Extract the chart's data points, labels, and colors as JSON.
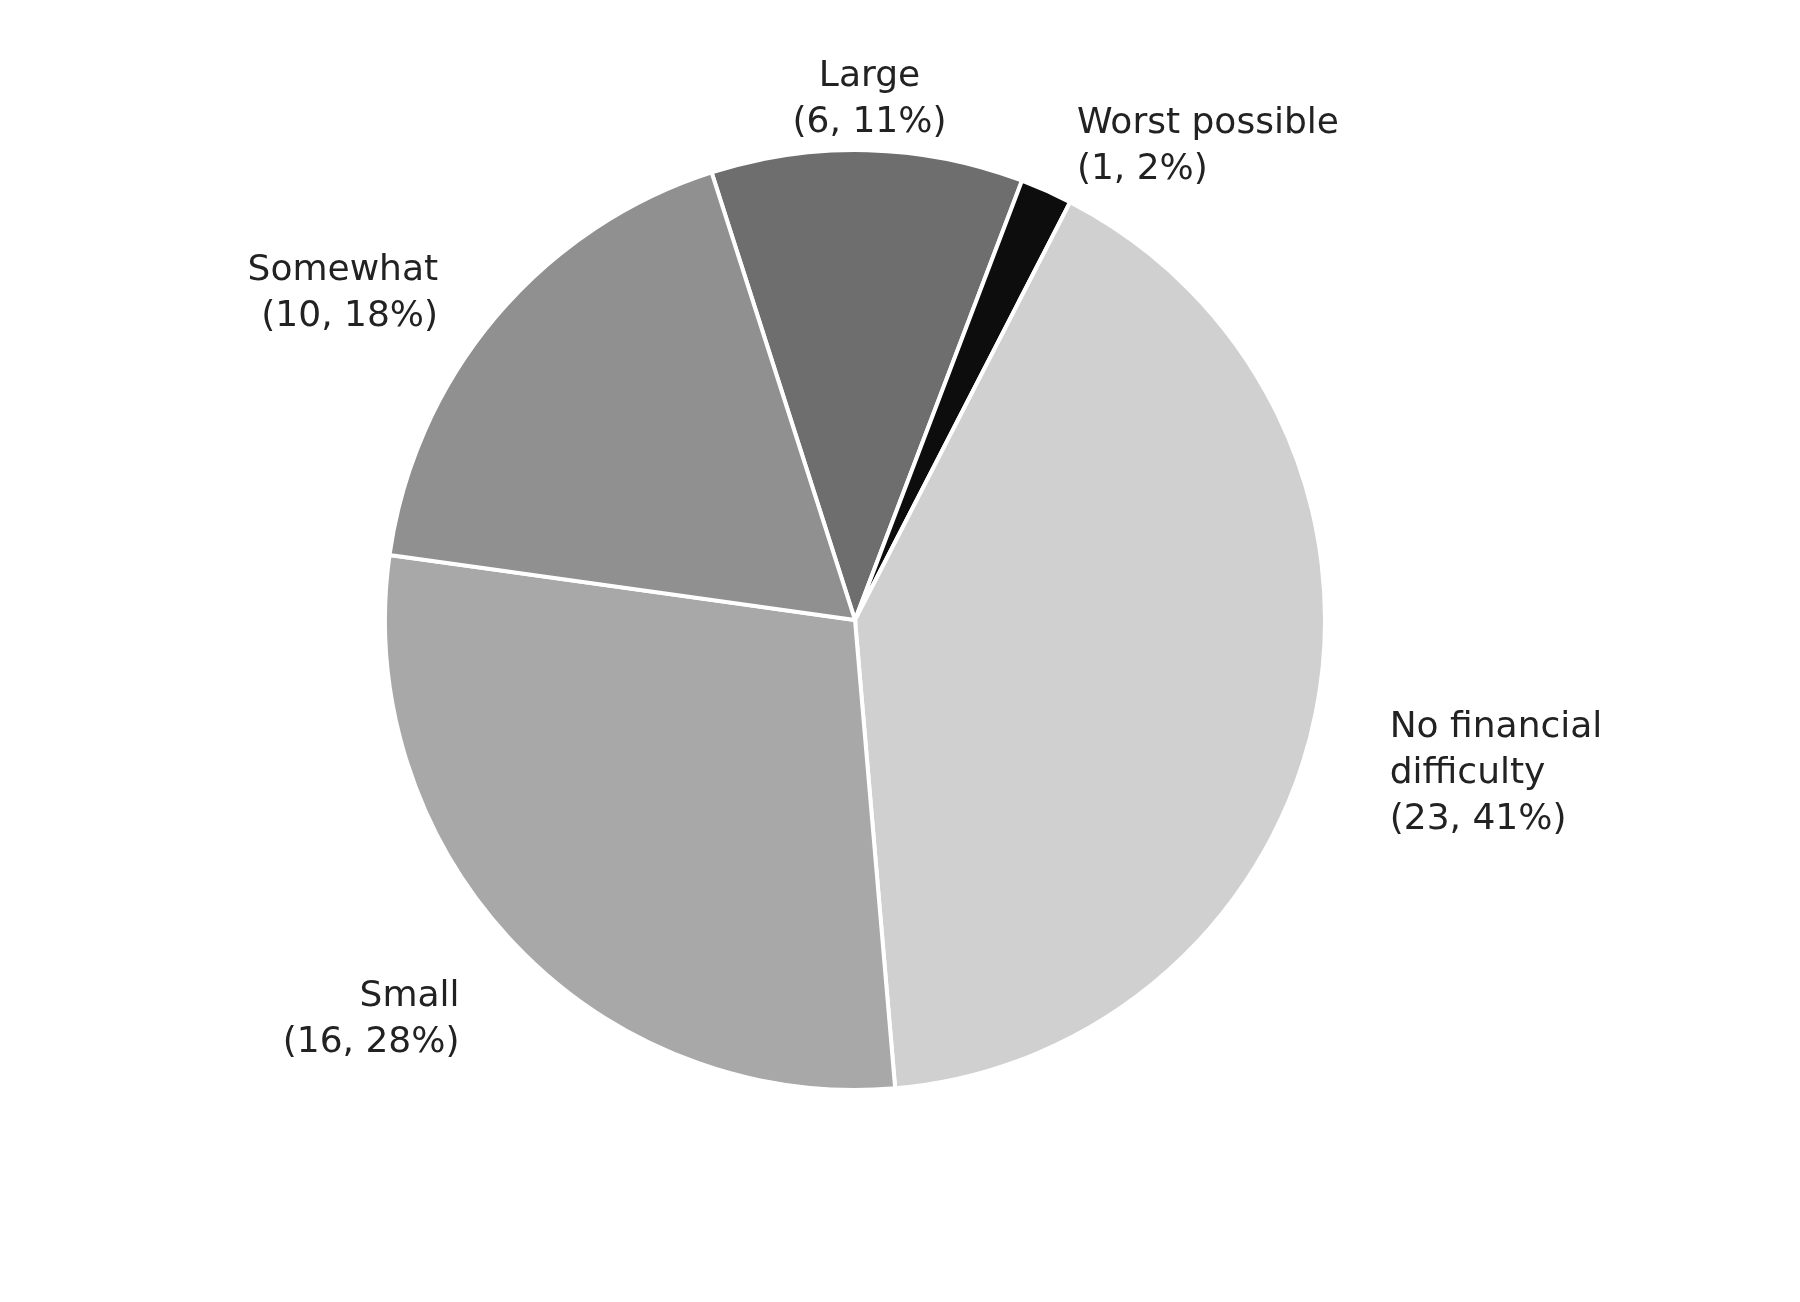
{
  "chart_data": {
    "type": "pie",
    "categories": [
      "Large",
      "Worst possible",
      "No financial difficulty",
      "Small",
      "Somewhat"
    ],
    "values": [
      6,
      1,
      23,
      16,
      10
    ],
    "colors": [
      "#6e6e6e",
      "#0d0d0d",
      "#d0d0d0",
      "#a8a8a8",
      "#909090"
    ],
    "value_labels": [
      "(6, 11%)",
      "(1, 2%)",
      "(23, 41%)",
      "(16, 28%)",
      "(10, 18%)"
    ],
    "legend": false
  }
}
